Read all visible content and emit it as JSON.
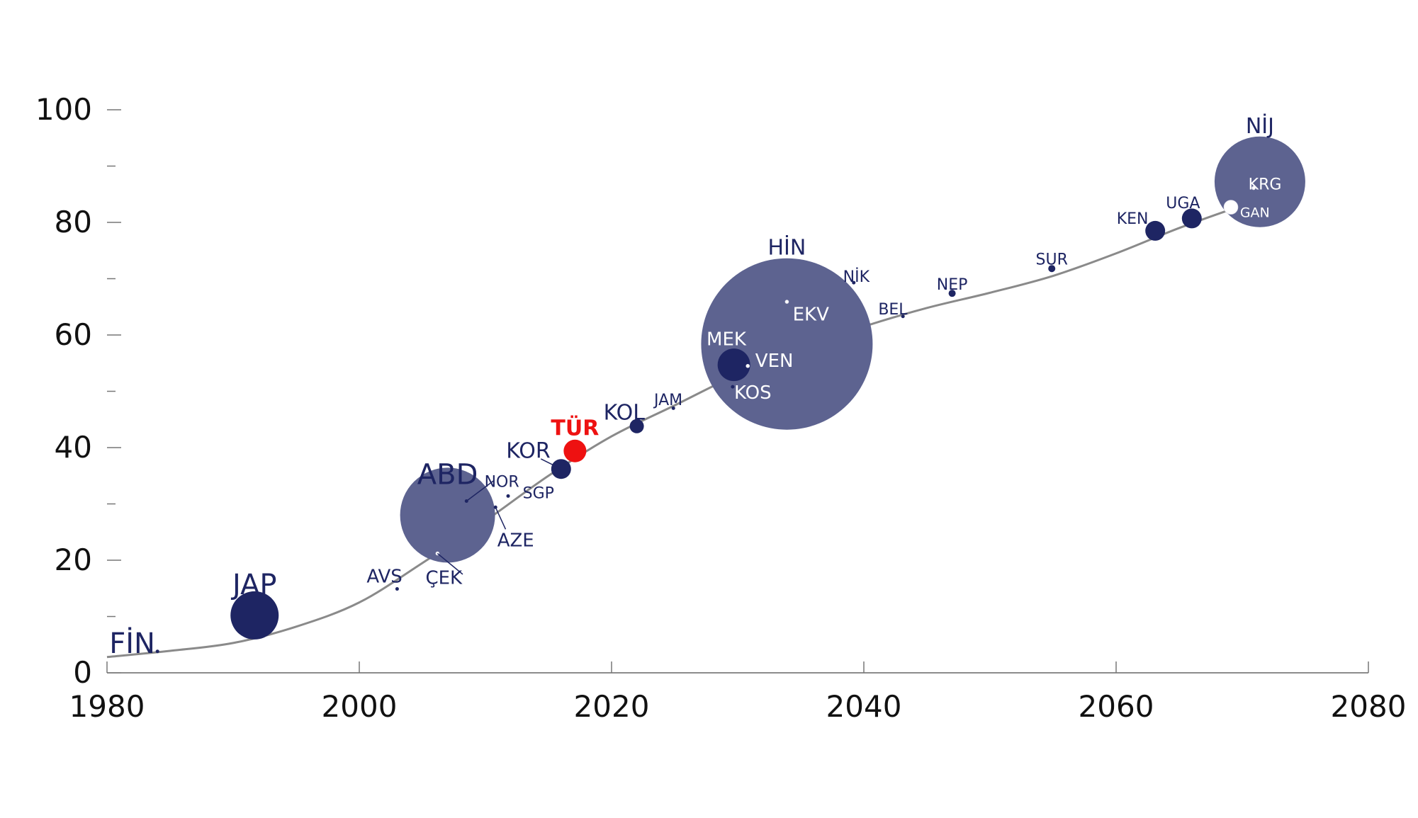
{
  "chart_data": {
    "type": "scatter",
    "xlim": [
      1980,
      2080
    ],
    "ylim": [
      0,
      100
    ],
    "xticks": [
      1980,
      2000,
      2020,
      2040,
      2060,
      2080
    ],
    "yticks": [
      0,
      20,
      40,
      60,
      80,
      100
    ],
    "y_minor_ticks": [
      10,
      30,
      50,
      70,
      90
    ],
    "grid": false,
    "legend": "none",
    "colors": {
      "large_bubble": "#5d6390",
      "dark_bubble": "#1e2563",
      "highlight": "#ee1111",
      "label": "#1e2563",
      "curve": "#8a8a8a",
      "axis_text": "#111111"
    },
    "trend_curve": [
      [
        1980,
        2.8
      ],
      [
        1985,
        3.9
      ],
      [
        1990,
        5.3
      ],
      [
        1995,
        8.2
      ],
      [
        2000,
        12.5
      ],
      [
        2005,
        19.5
      ],
      [
        2010,
        27.0
      ],
      [
        2015,
        35.0
      ],
      [
        2020,
        42.0
      ],
      [
        2025,
        47.5
      ],
      [
        2030,
        53.0
      ],
      [
        2035,
        57.5
      ],
      [
        2040,
        61.5
      ],
      [
        2045,
        64.8
      ],
      [
        2050,
        67.5
      ],
      [
        2055,
        70.5
      ],
      [
        2060,
        74.5
      ],
      [
        2065,
        79.0
      ],
      [
        2070,
        83.0
      ],
      [
        2071.5,
        84.0
      ]
    ],
    "points": [
      {
        "label": "FİN",
        "x": 1984,
        "y": 3.8,
        "size": "tiny",
        "color": "dark",
        "label_size": "xl",
        "label_dx": -2,
        "label_dy": 1.5
      },
      {
        "label": "JAP",
        "x": 1991.7,
        "y": 10.2,
        "size": "large",
        "color": "dark",
        "label_size": "xl",
        "label_dx": 0,
        "label_dy": 5.5
      },
      {
        "label": "AVS",
        "x": 2003,
        "y": 14.9,
        "size": "tiny",
        "color": "dark",
        "label_size": "m",
        "label_dx": -1,
        "label_dy": 2.3
      },
      {
        "label": "ABD",
        "x": 2007,
        "y": 28,
        "size": "xlarge",
        "color": "light",
        "label_size": "xl",
        "label_dx": 0,
        "label_dy": 7.3
      },
      {
        "label": "ÇEK",
        "x": 2006.2,
        "y": 21.2,
        "size": "tiny",
        "color": "white",
        "label_size": "m",
        "label_dx": 0.5,
        "label_dy": -4.3,
        "leader": [
          2008.2,
          17.5
        ]
      },
      {
        "label": "NOR",
        "x": 2008.5,
        "y": 30.5,
        "size": "tiny",
        "color": "dark",
        "label_size": "s",
        "label_dx": 2.8,
        "label_dy": 3.5,
        "leader": [
          2010.7,
          34.2
        ]
      },
      {
        "label": "SGP",
        "x": 2011.8,
        "y": 31.4,
        "size": "tiny",
        "color": "dark",
        "label_size": "s",
        "label_dx": 2.4,
        "label_dy": 0.6
      },
      {
        "label": "AZE",
        "x": 2010.8,
        "y": 29.4,
        "size": "tiny",
        "color": "dark",
        "label_size": "m",
        "label_dx": 1.6,
        "label_dy": -5.8,
        "leader": [
          2011.6,
          25.5
        ]
      },
      {
        "label": "KOR",
        "x": 2016,
        "y": 36.2,
        "size": "small",
        "color": "dark",
        "label_size": "l",
        "label_dx": -2.6,
        "label_dy": 3.3,
        "leader": [
          2014.4,
          38.0
        ]
      },
      {
        "label": "TÜR",
        "x": 2017.1,
        "y": 39.4,
        "size": "medium_small",
        "color": "highlight",
        "label_size": "l",
        "label_dx": 0,
        "label_dy": 4.1
      },
      {
        "label": "KOL",
        "x": 2022,
        "y": 43.8,
        "size": "small_xs",
        "color": "dark",
        "label_size": "l",
        "label_dx": -1,
        "label_dy": 2.5
      },
      {
        "label": "JAM",
        "x": 2024.9,
        "y": 47.0,
        "size": "tiny",
        "color": "dark",
        "label_size": "s",
        "label_dx": -0.4,
        "label_dy": 1.5
      },
      {
        "label": "HİN",
        "x": 2033.9,
        "y": 58.4,
        "size": "huge",
        "color": "light",
        "label_size": "l",
        "label_dx": 0,
        "label_dy": 17.2
      },
      {
        "label": "EKV",
        "x": 2033.9,
        "y": 65.9,
        "size": "tiny",
        "color": "white",
        "label_size": "m",
        "label_dx": 1.9,
        "label_dy": -2.2
      },
      {
        "label": "MEK",
        "x": 2029.7,
        "y": 54.7,
        "size": "medium",
        "color": "dark",
        "label_size": "m",
        "label_dx": -0.6,
        "label_dy": 4.6
      },
      {
        "label": "VEN",
        "x": 2030.8,
        "y": 54.5,
        "size": "tiny",
        "color": "white",
        "label_size": "m",
        "label_dx": 2.1,
        "label_dy": 1.0
      },
      {
        "label": "KOS",
        "x": 2029.6,
        "y": 50.8,
        "size": "tiny",
        "color": "dark",
        "label_size": "m",
        "label_dx": 1.6,
        "label_dy": -1.0
      },
      {
        "label": "NİK",
        "x": 2039.2,
        "y": 69.3,
        "size": "tiny",
        "color": "dark",
        "label_size": "s",
        "label_dx": 0.2,
        "label_dy": 1.1
      },
      {
        "label": "BEL",
        "x": 2043.1,
        "y": 63.3,
        "size": "tiny",
        "color": "dark",
        "label_size": "s",
        "label_dx": -0.8,
        "label_dy": 1.3
      },
      {
        "label": "NEP",
        "x": 2047,
        "y": 67.4,
        "size": "tiny_dot",
        "color": "dark",
        "label_size": "s",
        "label_dx": 0,
        "label_dy": 1.6
      },
      {
        "label": "SUR",
        "x": 2054.9,
        "y": 71.8,
        "size": "tiny_dot",
        "color": "dark",
        "label_size": "s",
        "label_dx": 0,
        "label_dy": 1.7
      },
      {
        "label": "KEN",
        "x": 2063.1,
        "y": 78.5,
        "size": "small",
        "color": "dark",
        "label_size": "s",
        "label_dx": -1.8,
        "label_dy": 2.2
      },
      {
        "label": "UGA",
        "x": 2066,
        "y": 80.7,
        "size": "small",
        "color": "dark",
        "label_size": "s",
        "label_dx": -0.7,
        "label_dy": 2.8
      },
      {
        "label": "NİJ",
        "x": 2071.4,
        "y": 87.2,
        "size": "large_bubble",
        "color": "light",
        "label_size": "l",
        "label_dx": 0,
        "label_dy": 10.0
      },
      {
        "label": "KRG",
        "x": 2070.9,
        "y": 86.1,
        "size": "tiny",
        "color": "white",
        "label_size": "s",
        "label_dx": 0.9,
        "label_dy": 0.7
      },
      {
        "label": "GAN",
        "x": 2069.1,
        "y": 82.7,
        "size": "small_xs",
        "color": "white",
        "label_size": "xs",
        "label_dx": 1.9,
        "label_dy": -0.9
      }
    ]
  }
}
